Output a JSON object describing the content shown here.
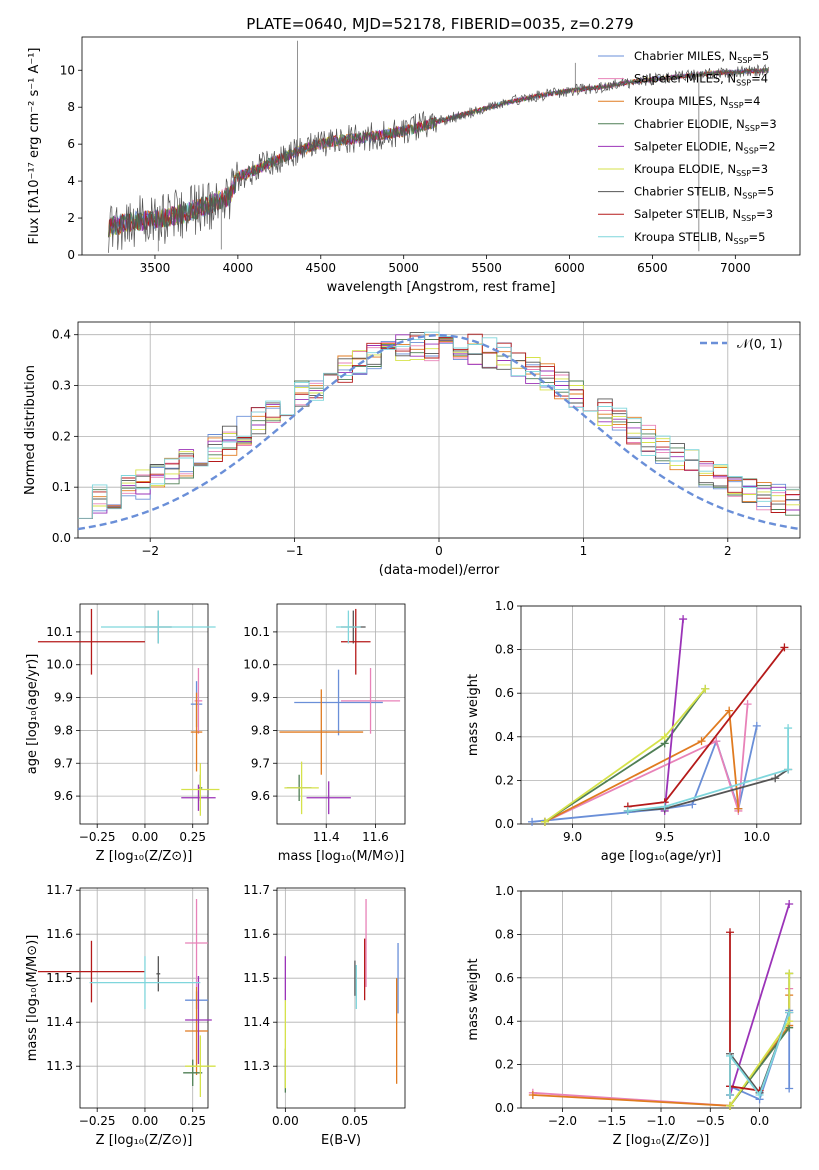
{
  "figure": {
    "title": "PLATE=0640, MJD=52178, FIBERID=0035, z=0.279"
  },
  "colors": {
    "Chabrier MILES": "#6a8fd8",
    "Salpeter MILES": "#e882b8",
    "Kroupa MILES": "#e07b20",
    "Chabrier ELODIE": "#4f7f55",
    "Salpeter ELODIE": "#9b33b8",
    "Kroupa ELODIE": "#d6e24a",
    "Chabrier STELIB": "#555555",
    "Salpeter STELIB": "#b51a1a",
    "Kroupa STELIB": "#7fd6dc"
  },
  "chart_data": [
    {
      "id": "spectrum",
      "type": "line",
      "xlabel": "wavelength [Angstrom, rest frame]",
      "ylabel": "Flux [fλ10⁻¹⁷ erg cm⁻² s⁻¹ A⁻¹]",
      "xlim": [
        3060,
        7390
      ],
      "ylim": [
        0,
        11.8
      ],
      "xticks": [
        3500,
        4000,
        4500,
        5000,
        5500,
        6000,
        6500,
        7000
      ],
      "yticks": [
        0,
        2,
        4,
        6,
        8,
        10
      ],
      "grid": false,
      "legend_position": "top-right",
      "legend": [
        {
          "label": "Chabrier MILES, N",
          "sub": "SSP",
          "suffix": "=5",
          "color_key": "Chabrier MILES"
        },
        {
          "label": "Salpeter MILES, N",
          "sub": "SSP",
          "suffix": "=4",
          "color_key": "Salpeter MILES"
        },
        {
          "label": "Kroupa MILES, N",
          "sub": "SSP",
          "suffix": "=4",
          "color_key": "Kroupa MILES"
        },
        {
          "label": "Chabrier ELODIE, N",
          "sub": "SSP",
          "suffix": "=3",
          "color_key": "Chabrier ELODIE"
        },
        {
          "label": "Salpeter ELODIE, N",
          "sub": "SSP",
          "suffix": "=2",
          "color_key": "Salpeter ELODIE"
        },
        {
          "label": "Kroupa ELODIE, N",
          "sub": "SSP",
          "suffix": "=3",
          "color_key": "Kroupa ELODIE"
        },
        {
          "label": "Chabrier STELIB, N",
          "sub": "SSP",
          "suffix": "=5",
          "color_key": "Chabrier STELIB"
        },
        {
          "label": "Salpeter STELIB, N",
          "sub": "SSP",
          "suffix": "=3",
          "color_key": "Salpeter STELIB"
        },
        {
          "label": "Kroupa STELIB, N",
          "sub": "SSP",
          "suffix": "=5",
          "color_key": "Kroupa STELIB"
        }
      ],
      "continuum": {
        "x": [
          3220,
          3350,
          3500,
          3650,
          3800,
          3950,
          4000,
          4150,
          4300,
          4450,
          4600,
          4800,
          5000,
          5200,
          5400,
          5600,
          5800,
          6000,
          6200,
          6400,
          6600,
          6800,
          7000,
          7200
        ],
        "y": [
          1.5,
          1.8,
          1.9,
          2.2,
          2.6,
          3.2,
          4.2,
          4.8,
          5.4,
          5.9,
          6.2,
          6.4,
          6.7,
          7.2,
          7.7,
          8.2,
          8.6,
          8.9,
          9.1,
          9.4,
          9.6,
          9.8,
          9.9,
          10.0
        ]
      }
    },
    {
      "id": "residuals",
      "type": "line",
      "xlabel": "(data-model)/error",
      "ylabel": "Normed distribution",
      "xlim": [
        -2.5,
        2.5
      ],
      "ylim": [
        0,
        0.425
      ],
      "xticks": [
        -2,
        -1,
        0,
        1,
        2
      ],
      "xtick_labels": [
        "−2",
        "−1",
        "0",
        "1",
        "2"
      ],
      "yticks": [
        0.0,
        0.1,
        0.2,
        0.3,
        0.4
      ],
      "ytick_labels": [
        "0.0",
        "0.1",
        "0.2",
        "0.3",
        "0.4"
      ],
      "grid": true,
      "legend_position": "top-right",
      "reference_curve": {
        "label": "𝒩(0, 1)",
        "color": "#6a8fd8"
      }
    },
    {
      "id": "age-vs-Z",
      "type": "scatter",
      "xlabel": "Z [log₁₀(Z/Z⊙)]",
      "ylabel": "age  [log₁₀(age/yr)]",
      "xlim": [
        -0.34,
        0.33
      ],
      "ylim": [
        9.515,
        10.185
      ],
      "xticks": [
        -0.25,
        0.0,
        0.25
      ],
      "xtick_labels": [
        "−0.25",
        "0.00",
        "0.25"
      ],
      "yticks": [
        9.6,
        9.7,
        9.8,
        9.9,
        10.0,
        10.1
      ],
      "ytick_labels": [
        "9.6",
        "9.7",
        "9.8",
        "9.9",
        "10.0",
        "10.1"
      ],
      "grid": true,
      "points": [
        {
          "key": "Chabrier MILES",
          "x": 0.27,
          "y": 9.88,
          "xe": 0.03,
          "ye": 0.07
        },
        {
          "key": "Salpeter MILES",
          "x": 0.28,
          "y": 9.89,
          "xe": 0.02,
          "ye": 0.1
        },
        {
          "key": "Kroupa MILES",
          "x": 0.27,
          "y": 9.795,
          "xe": 0.03,
          "ye": 0.12
        },
        {
          "key": "Chabrier ELODIE",
          "x": 0.29,
          "y": 9.625,
          "xe": 0.01,
          "ye": 0.04
        },
        {
          "key": "Salpeter ELODIE",
          "x": 0.28,
          "y": 9.595,
          "xe": 0.09,
          "ye": 0.04
        },
        {
          "key": "Kroupa ELODIE",
          "x": 0.29,
          "y": 9.62,
          "xe": 0.1,
          "ye": 0.08
        },
        {
          "key": "Chabrier STELIB",
          "x": 0.07,
          "y": 10.115,
          "xe": 0.07,
          "ye": 0.05
        },
        {
          "key": "Salpeter STELIB",
          "x": -0.28,
          "y": 10.07,
          "xe": 0.28,
          "ye": 0.1
        },
        {
          "key": "Kroupa STELIB",
          "x": 0.07,
          "y": 10.115,
          "xe": 0.3,
          "ye": 0.05
        }
      ]
    },
    {
      "id": "age-vs-mass",
      "type": "scatter",
      "xlabel": "mass [log₁₀(M/M⊙)]",
      "ylabel": "",
      "xlim": [
        11.2,
        11.72
      ],
      "ylim": [
        9.515,
        10.185
      ],
      "xticks": [
        11.4,
        11.6
      ],
      "xtick_labels": [
        "11.4",
        "11.6"
      ],
      "yticks": [
        9.6,
        9.7,
        9.8,
        9.9,
        10.0,
        10.1
      ],
      "ytick_labels": [
        "9.6",
        "9.7",
        "9.8",
        "9.9",
        "10.0",
        "10.1"
      ],
      "grid": true,
      "points": [
        {
          "key": "Chabrier MILES",
          "x": 11.45,
          "y": 9.885,
          "xe": 0.18,
          "ye": 0.1
        },
        {
          "key": "Salpeter MILES",
          "x": 11.58,
          "y": 9.89,
          "xe": 0.12,
          "ye": 0.1
        },
        {
          "key": "Kroupa MILES",
          "x": 11.38,
          "y": 9.795,
          "xe": 0.17,
          "ye": 0.13
        },
        {
          "key": "Chabrier ELODIE",
          "x": 11.29,
          "y": 9.625,
          "xe": 0.05,
          "ye": 0.04
        },
        {
          "key": "Salpeter ELODIE",
          "x": 11.41,
          "y": 9.595,
          "xe": 0.09,
          "ye": 0.05
        },
        {
          "key": "Kroupa ELODIE",
          "x": 11.3,
          "y": 9.625,
          "xe": 0.07,
          "ye": 0.08
        },
        {
          "key": "Chabrier STELIB",
          "x": 11.51,
          "y": 10.115,
          "xe": 0.05,
          "ye": 0.05
        },
        {
          "key": "Salpeter STELIB",
          "x": 11.52,
          "y": 10.07,
          "xe": 0.06,
          "ye": 0.1
        },
        {
          "key": "Kroupa STELIB",
          "x": 11.49,
          "y": 10.115,
          "xe": 0.05,
          "ye": 0.05
        }
      ]
    },
    {
      "id": "mass-weight-vs-age",
      "type": "line",
      "xlabel": "age  [log₁₀(age/yr)]",
      "ylabel": "mass weight",
      "xlim": [
        8.72,
        10.24
      ],
      "ylim": [
        0.0,
        1.0
      ],
      "xticks": [
        9.0,
        9.5,
        10.0
      ],
      "xtick_labels": [
        "9.0",
        "9.5",
        "10.0"
      ],
      "yticks": [
        0.0,
        0.2,
        0.4,
        0.6,
        0.8,
        1.0
      ],
      "ytick_labels": [
        "0.0",
        "0.2",
        "0.4",
        "0.6",
        "0.8",
        "1.0"
      ],
      "grid": true,
      "series": [
        {
          "key": "Chabrier MILES",
          "x": [
            8.78,
            9.5,
            9.65,
            9.78,
            9.9,
            10.0
          ],
          "y": [
            0.01,
            0.07,
            0.09,
            0.38,
            0.07,
            0.45
          ]
        },
        {
          "key": "Salpeter MILES",
          "x": [
            8.85,
            9.78,
            9.9,
            9.95
          ],
          "y": [
            0.01,
            0.38,
            0.06,
            0.55
          ]
        },
        {
          "key": "Kroupa MILES",
          "x": [
            8.85,
            9.7,
            9.85,
            9.9
          ],
          "y": [
            0.01,
            0.38,
            0.52,
            0.07
          ]
        },
        {
          "key": "Chabrier ELODIE",
          "x": [
            8.85,
            9.5,
            9.72
          ],
          "y": [
            0.01,
            0.37,
            0.62
          ]
        },
        {
          "key": "Salpeter ELODIE",
          "x": [
            9.5,
            9.6
          ],
          "y": [
            0.06,
            0.94
          ]
        },
        {
          "key": "Kroupa ELODIE",
          "x": [
            8.85,
            9.5,
            9.72
          ],
          "y": [
            0.01,
            0.4,
            0.62
          ]
        },
        {
          "key": "Chabrier STELIB",
          "x": [
            9.3,
            9.5,
            10.1,
            10.17
          ],
          "y": [
            0.06,
            0.07,
            0.21,
            0.25
          ]
        },
        {
          "key": "Salpeter STELIB",
          "x": [
            9.3,
            9.5,
            10.15
          ],
          "y": [
            0.08,
            0.1,
            0.81
          ]
        },
        {
          "key": "Kroupa STELIB",
          "x": [
            9.3,
            9.5,
            10.17,
            10.17
          ],
          "y": [
            0.06,
            0.08,
            0.25,
            0.44
          ]
        }
      ]
    },
    {
      "id": "mass-vs-Z",
      "type": "scatter",
      "xlabel": "Z [log₁₀(Z/Z⊙)]",
      "ylabel": "mass [log₁₀(M/M⊙)]",
      "xlim": [
        -0.34,
        0.33
      ],
      "ylim": [
        11.205,
        11.705
      ],
      "xticks": [
        -0.25,
        0.0,
        0.25
      ],
      "xtick_labels": [
        "−0.25",
        "0.00",
        "0.25"
      ],
      "yticks": [
        11.3,
        11.4,
        11.5,
        11.6,
        11.7
      ],
      "ytick_labels": [
        "11.3",
        "11.4",
        "11.5",
        "11.6",
        "11.7"
      ],
      "grid": true,
      "points": [
        {
          "key": "Chabrier MILES",
          "x": 0.27,
          "y": 11.45,
          "xe": 0.06,
          "ye": 0.02
        },
        {
          "key": "Salpeter MILES",
          "x": 0.27,
          "y": 11.58,
          "xe": 0.06,
          "ye": 0.1
        },
        {
          "key": "Kroupa MILES",
          "x": 0.27,
          "y": 11.38,
          "xe": 0.06,
          "ye": 0.1
        },
        {
          "key": "Chabrier ELODIE",
          "x": 0.25,
          "y": 11.285,
          "xe": 0.05,
          "ye": 0.03
        },
        {
          "key": "Salpeter ELODIE",
          "x": 0.28,
          "y": 11.405,
          "xe": 0.07,
          "ye": 0.1
        },
        {
          "key": "Kroupa ELODIE",
          "x": 0.29,
          "y": 11.3,
          "xe": 0.08,
          "ye": 0.07
        },
        {
          "key": "Chabrier STELIB",
          "x": 0.07,
          "y": 11.51,
          "xe": 0.01,
          "ye": 0.04
        },
        {
          "key": "Salpeter STELIB",
          "x": -0.28,
          "y": 11.515,
          "xe": 0.28,
          "ye": 0.07
        },
        {
          "key": "Kroupa STELIB",
          "x": 0.0,
          "y": 11.49,
          "xe": 0.29,
          "ye": 0.06
        }
      ]
    },
    {
      "id": "mass-vs-EBV",
      "type": "scatter",
      "xlabel": "E(B-V)",
      "ylabel": "",
      "xlim": [
        -0.006,
        0.086
      ],
      "ylim": [
        11.205,
        11.705
      ],
      "xticks": [
        0.0,
        0.05
      ],
      "xtick_labels": [
        "0.00",
        "0.05"
      ],
      "yticks": [
        11.3,
        11.4,
        11.5,
        11.6,
        11.7
      ],
      "ytick_labels": [
        "11.3",
        "11.4",
        "11.5",
        "11.6",
        "11.7"
      ],
      "grid": true,
      "points": [
        {
          "key": "Chabrier MILES",
          "x": 0.081,
          "y": 11.5,
          "xe": 0,
          "ye": 0.08
        },
        {
          "key": "Salpeter MILES",
          "x": 0.058,
          "y": 11.58,
          "xe": 0,
          "ye": 0.1
        },
        {
          "key": "Kroupa MILES",
          "x": 0.08,
          "y": 11.38,
          "xe": 0,
          "ye": 0.12
        },
        {
          "key": "Chabrier ELODIE",
          "x": 0.0,
          "y": 11.29,
          "xe": 0,
          "ye": 0.05
        },
        {
          "key": "Salpeter ELODIE",
          "x": 0.0,
          "y": 11.5,
          "xe": 0,
          "ye": 0.05
        },
        {
          "key": "Kroupa ELODIE",
          "x": 0.0,
          "y": 11.35,
          "xe": 0,
          "ye": 0.1
        },
        {
          "key": "Chabrier STELIB",
          "x": 0.05,
          "y": 11.5,
          "xe": 0,
          "ye": 0.04
        },
        {
          "key": "Salpeter STELIB",
          "x": 0.057,
          "y": 11.52,
          "xe": 0,
          "ye": 0.07
        },
        {
          "key": "Kroupa STELIB",
          "x": 0.051,
          "y": 11.48,
          "xe": 0,
          "ye": 0.05
        }
      ]
    },
    {
      "id": "mass-weight-vs-Z",
      "type": "line",
      "xlabel": "Z [log₁₀(Z/Z⊙)]",
      "ylabel": "mass weight",
      "xlim": [
        -2.42,
        0.42
      ],
      "ylim": [
        0.0,
        1.0
      ],
      "xticks": [
        -2.0,
        -1.5,
        -1.0,
        -0.5,
        0.0
      ],
      "xtick_labels": [
        "−2.0",
        "−1.5",
        "−1.0",
        "−0.5",
        "0.0"
      ],
      "yticks": [
        0.0,
        0.2,
        0.4,
        0.6,
        0.8,
        1.0
      ],
      "ytick_labels": [
        "0.0",
        "0.2",
        "0.4",
        "0.6",
        "0.8",
        "1.0"
      ],
      "grid": true,
      "series": [
        {
          "key": "Chabrier MILES",
          "x": [
            -0.3,
            -0.3,
            0.0,
            0.3,
            0.3
          ],
          "y": [
            0.06,
            0.1,
            0.04,
            0.45,
            0.09
          ]
        },
        {
          "key": "Salpeter MILES",
          "x": [
            -2.3,
            -0.3,
            0.3,
            0.3
          ],
          "y": [
            0.07,
            0.01,
            0.38,
            0.55
          ]
        },
        {
          "key": "Kroupa MILES",
          "x": [
            -2.3,
            -0.3,
            0.3,
            0.3
          ],
          "y": [
            0.06,
            0.01,
            0.38,
            0.52
          ]
        },
        {
          "key": "Chabrier ELODIE",
          "x": [
            -0.3,
            0.3,
            0.3
          ],
          "y": [
            0.01,
            0.37,
            0.62
          ]
        },
        {
          "key": "Salpeter ELODIE",
          "x": [
            -0.3,
            0.3
          ],
          "y": [
            0.06,
            0.94
          ]
        },
        {
          "key": "Kroupa ELODIE",
          "x": [
            -0.3,
            0.3,
            0.3
          ],
          "y": [
            0.01,
            0.4,
            0.62
          ]
        },
        {
          "key": "Chabrier STELIB",
          "x": [
            -0.3,
            -0.3,
            0.0,
            0.3
          ],
          "y": [
            0.06,
            0.25,
            0.07,
            0.44
          ]
        },
        {
          "key": "Salpeter STELIB",
          "x": [
            -0.3,
            -0.3,
            0.0
          ],
          "y": [
            0.81,
            0.1,
            0.08
          ]
        },
        {
          "key": "Kroupa STELIB",
          "x": [
            -0.3,
            -0.3,
            0.0,
            0.3
          ],
          "y": [
            0.06,
            0.24,
            0.06,
            0.44
          ]
        }
      ]
    }
  ]
}
